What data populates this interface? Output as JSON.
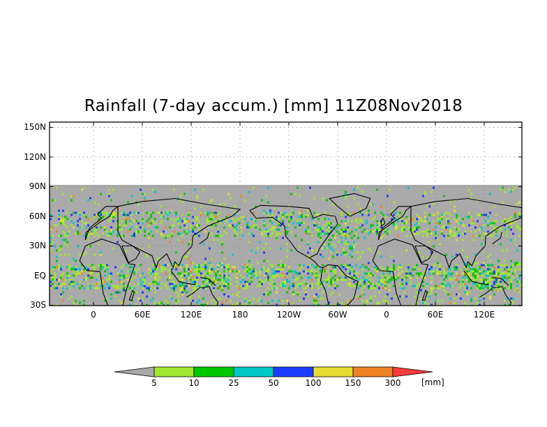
{
  "map": {
    "title": "Rainfall (7-day accum.) [mm] 11Z08Nov2018",
    "lat_labels": [
      "150N",
      "120N",
      "90N",
      "60N",
      "30N",
      "EQ",
      "30S"
    ],
    "lon_labels": [
      "0",
      "60E",
      "120E",
      "180",
      "120W",
      "60W",
      "0",
      "60E",
      "120E"
    ],
    "no_data_color": "#aaaaaa",
    "data_extent_lat": [
      -30,
      90
    ]
  },
  "colorbar": {
    "thresholds": [
      "5",
      "10",
      "25",
      "50",
      "100",
      "150",
      "300"
    ],
    "unit": "[mm]",
    "colors": [
      "#aaaaaa",
      "#a0e632",
      "#00c800",
      "#00c8c8",
      "#1e3cff",
      "#e6dc32",
      "#f08228",
      "#fa3c3c"
    ]
  }
}
